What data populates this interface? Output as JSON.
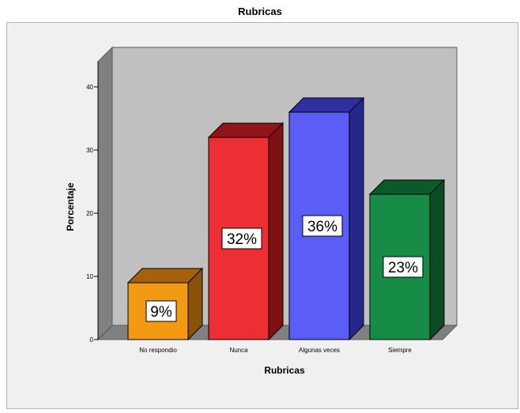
{
  "chart_data": {
    "type": "bar",
    "title": "Rubricas",
    "xlabel": "Rubricas",
    "ylabel": "Porcentaje",
    "categories": [
      "No respondio",
      "Nunca",
      "Algunas veces",
      "Siempre"
    ],
    "values": [
      9,
      32,
      36,
      23
    ],
    "data_labels": [
      "9%",
      "32%",
      "36%",
      "23%"
    ],
    "yticks": [
      0,
      10,
      20,
      30,
      40
    ],
    "ylim": [
      0,
      44
    ],
    "grid": false,
    "legend": "none",
    "style": "3d",
    "colors": {
      "bars": [
        "#f39a14",
        "#ee2e35",
        "#5a5ef7",
        "#178c47"
      ],
      "bar_tops": [
        "#a4620a",
        "#8f1518",
        "#2e30a0",
        "#0c5a2b"
      ],
      "bar_sides": [
        "#8a5108",
        "#7d1114",
        "#25278a",
        "#0a4c24"
      ],
      "plot_back": "#c0c0c0",
      "plot_wall": "#808080",
      "frame_background": "#f0f0f0"
    }
  }
}
